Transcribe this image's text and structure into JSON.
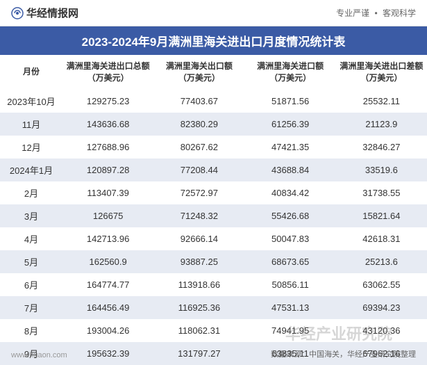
{
  "header": {
    "brand": "华经情报网",
    "tagline_left": "专业严谨",
    "tagline_right": "客观科学"
  },
  "title": "2023-2024年9月满洲里海关进出口月度情况统计表",
  "table": {
    "columns": [
      "月份",
      "满洲里海关进出口总额（万美元）",
      "满洲里海关出口额（万美元）",
      "满洲里海关进口额（万美元）",
      "满洲里海关进出口差额（万美元）"
    ],
    "rows": [
      [
        "2023年10月",
        "129275.23",
        "77403.67",
        "51871.56",
        "25532.11"
      ],
      [
        "11月",
        "143636.68",
        "82380.29",
        "61256.39",
        "21123.9"
      ],
      [
        "12月",
        "127688.96",
        "80267.62",
        "47421.35",
        "32846.27"
      ],
      [
        "2024年1月",
        "120897.28",
        "77208.44",
        "43688.84",
        "33519.6"
      ],
      [
        "2月",
        "113407.39",
        "72572.97",
        "40834.42",
        "31738.55"
      ],
      [
        "3月",
        "126675",
        "71248.32",
        "55426.68",
        "15821.64"
      ],
      [
        "4月",
        "142713.96",
        "92666.14",
        "50047.83",
        "42618.31"
      ],
      [
        "5月",
        "162560.9",
        "93887.25",
        "68673.65",
        "25213.6"
      ],
      [
        "6月",
        "164774.77",
        "113918.66",
        "50856.11",
        "63062.55"
      ],
      [
        "7月",
        "164456.49",
        "116925.36",
        "47531.13",
        "69394.23"
      ],
      [
        "8月",
        "193004.26",
        "118062.31",
        "74941.95",
        "43120.36"
      ],
      [
        "9月",
        "195632.39",
        "131797.27",
        "63835.11",
        "67962.16"
      ]
    ]
  },
  "footer": {
    "source": "数据来源：中国海关，华经产业研究院整理",
    "site": "www.huaon.com",
    "watermark": "华经产业研究院"
  },
  "colors": {
    "title_bg": "#3b5ba5",
    "row_alt": "#e7ebf3",
    "text": "#333333"
  }
}
